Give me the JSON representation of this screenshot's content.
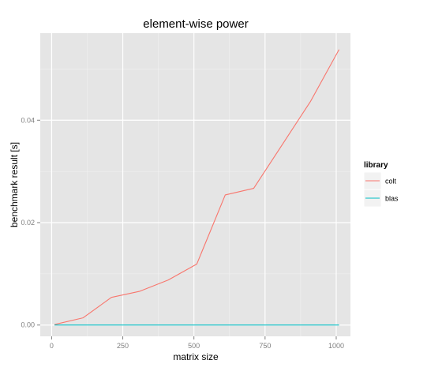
{
  "chart_data": {
    "type": "line",
    "title": "element-wise power",
    "xlabel": "matrix size",
    "ylabel": "benchmark result [s]",
    "xlim": [
      -40,
      1050
    ],
    "ylim": [
      -0.0022,
      0.057
    ],
    "x_ticks": [
      0,
      250,
      500,
      750,
      1000
    ],
    "x_tick_labels": [
      "0",
      "250",
      "500",
      "750",
      "1000"
    ],
    "y_ticks": [
      0.0,
      0.02,
      0.04
    ],
    "y_tick_labels": [
      "0.00",
      "0.02",
      "0.04"
    ],
    "x": [
      10,
      110,
      210,
      310,
      410,
      510,
      610,
      710,
      810,
      910,
      1010
    ],
    "series": [
      {
        "name": "colt",
        "color": "#F8766D",
        "values": [
          0.0001,
          0.0014,
          0.0054,
          0.0066,
          0.0088,
          0.0119,
          0.0254,
          0.0267,
          0.0352,
          0.0437,
          0.0538
        ]
      },
      {
        "name": "blas",
        "color": "#00BFC4",
        "values": [
          0.0,
          0.0,
          0.0,
          0.0,
          0.0,
          0.0,
          0.0,
          0.0,
          0.0,
          0.0,
          0.0
        ]
      }
    ],
    "legend": {
      "title": "library",
      "position": "right"
    },
    "grid": true,
    "panel_background": "#E5E5E5",
    "grid_color": "#FFFFFF"
  }
}
